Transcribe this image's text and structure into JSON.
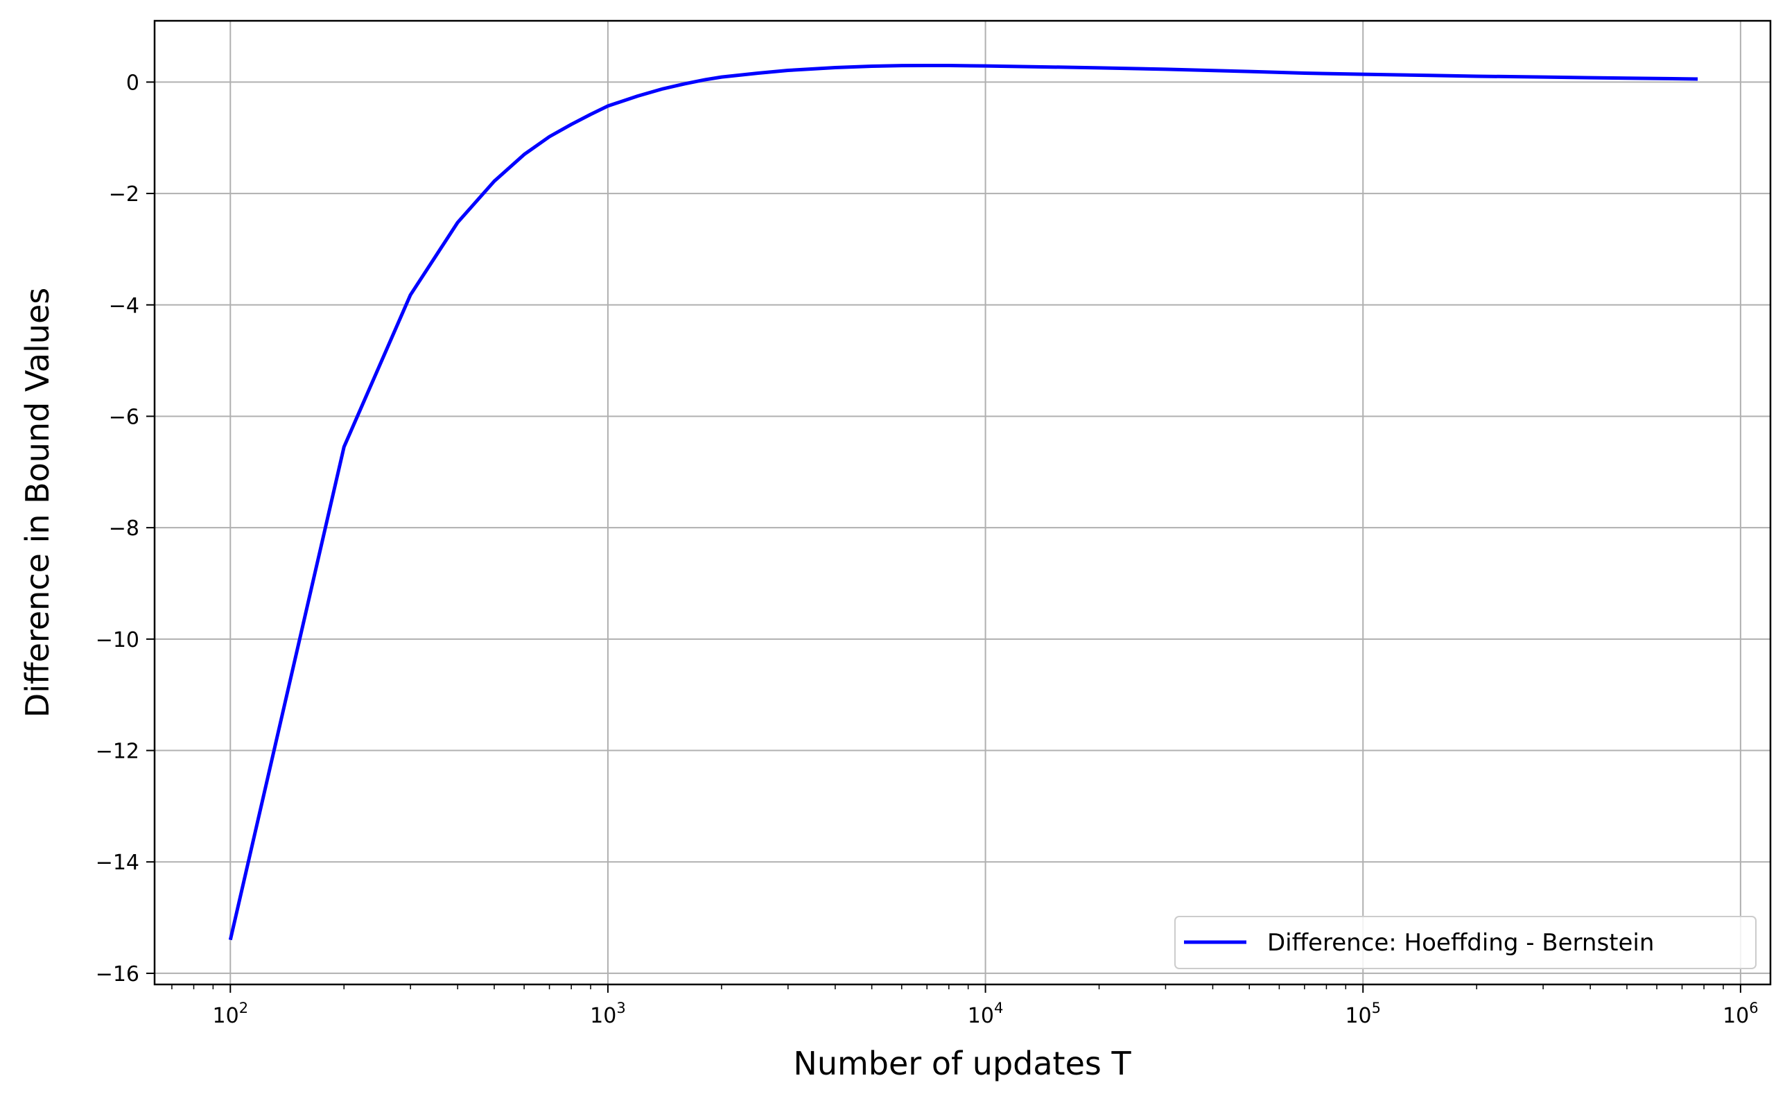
{
  "chart_data": {
    "type": "line",
    "title": "",
    "xlabel": "Number of updates T",
    "ylabel": "Difference in Bound Values",
    "xscale": "log",
    "xlim": [
      63,
      1200000
    ],
    "ylim": [
      -16.2,
      1.1
    ],
    "grid": true,
    "legend_position": "lower-right",
    "x_ticks": [
      {
        "value": 100,
        "base": "10",
        "exp": "2"
      },
      {
        "value": 1000,
        "base": "10",
        "exp": "3"
      },
      {
        "value": 10000,
        "base": "10",
        "exp": "4"
      },
      {
        "value": 100000,
        "base": "10",
        "exp": "5"
      },
      {
        "value": 1000000,
        "base": "10",
        "exp": "6"
      }
    ],
    "y_ticks": [
      {
        "value": 0,
        "label": "0"
      },
      {
        "value": -2,
        "label": "−2"
      },
      {
        "value": -4,
        "label": "−4"
      },
      {
        "value": -6,
        "label": "−6"
      },
      {
        "value": -8,
        "label": "−8"
      },
      {
        "value": -10,
        "label": "−10"
      },
      {
        "value": -12,
        "label": "−12"
      },
      {
        "value": -14,
        "label": "−14"
      },
      {
        "value": -16,
        "label": "−16"
      }
    ],
    "series": [
      {
        "name": "Difference: Hoeffding - Bernstein",
        "color": "#0000ff",
        "points": [
          [
            100,
            -15.4
          ],
          [
            200,
            -6.55
          ],
          [
            300,
            -3.82
          ],
          [
            400,
            -2.52
          ],
          [
            500,
            -1.78
          ],
          [
            600,
            -1.3
          ],
          [
            700,
            -0.98
          ],
          [
            800,
            -0.76
          ],
          [
            900,
            -0.58
          ],
          [
            1000,
            -0.43
          ],
          [
            1200,
            -0.25
          ],
          [
            1400,
            -0.12
          ],
          [
            1600,
            -0.03
          ],
          [
            1800,
            0.04
          ],
          [
            2000,
            0.09
          ],
          [
            2500,
            0.16
          ],
          [
            3000,
            0.21
          ],
          [
            4000,
            0.26
          ],
          [
            5000,
            0.285
          ],
          [
            6000,
            0.295
          ],
          [
            7000,
            0.298
          ],
          [
            8000,
            0.297
          ],
          [
            10000,
            0.29
          ],
          [
            15000,
            0.27
          ],
          [
            20000,
            0.255
          ],
          [
            30000,
            0.23
          ],
          [
            50000,
            0.19
          ],
          [
            70000,
            0.16
          ],
          [
            100000,
            0.14
          ],
          [
            150000,
            0.12
          ],
          [
            200000,
            0.105
          ],
          [
            300000,
            0.09
          ],
          [
            500000,
            0.07
          ],
          [
            770000,
            0.055
          ]
        ]
      }
    ]
  }
}
